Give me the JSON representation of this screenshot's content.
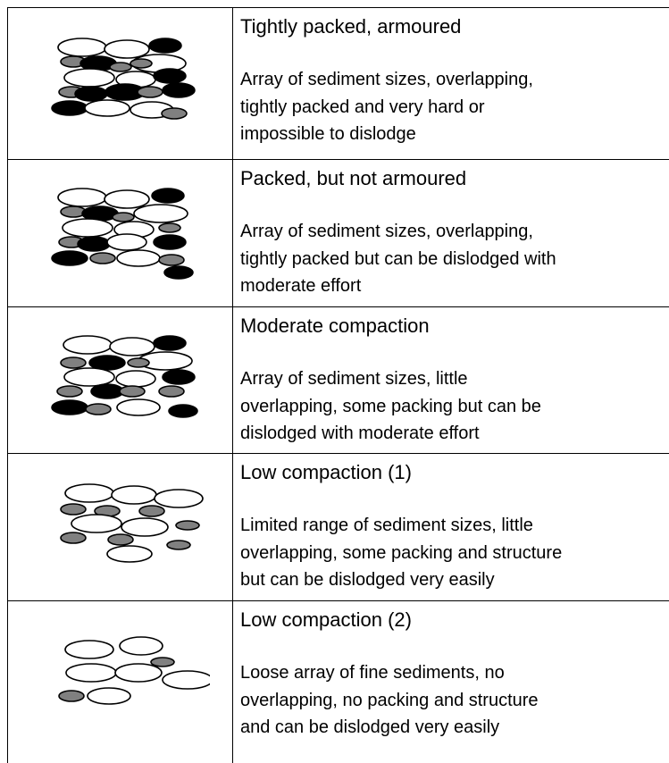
{
  "table": {
    "rows": [
      {
        "title": "Tightly packed, armoured",
        "description": [
          "Array of sediment sizes, overlapping,",
          "tightly packed and very hard or",
          "impossible to dislodge"
        ]
      },
      {
        "title": "Packed, but not armoured",
        "description": [
          "Array of sediment sizes, overlapping,",
          "tightly packed but can be dislodged with",
          "moderate effort"
        ]
      },
      {
        "title": "Moderate compaction",
        "description": [
          "Array of sediment sizes, little",
          "overlapping, some packing but can be",
          "dislodged with moderate effort"
        ]
      },
      {
        "title": "Low compaction (1)",
        "description": [
          "Limited range of sediment sizes, little",
          "overlapping, some packing and structure",
          "but can be dislodged very easily"
        ]
      },
      {
        "title": "Low compaction (2)",
        "description": [
          "Loose array of fine sediments, no",
          "overlapping, no packing and structure",
          "and can be dislodged very easily"
        ]
      }
    ]
  }
}
